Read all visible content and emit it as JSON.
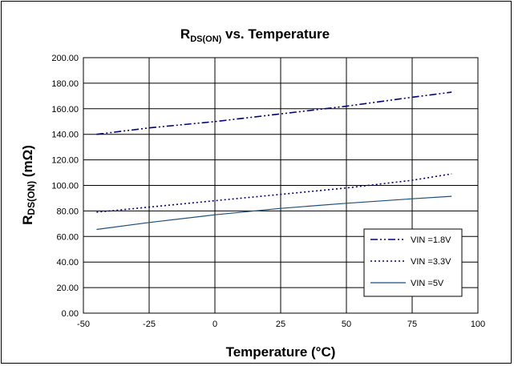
{
  "chart_data": {
    "type": "line",
    "title": {
      "main": "R",
      "subscript": "DS(ON)",
      "rest": " vs. Temperature"
    },
    "xlabel": "Temperature (°C)",
    "ylabel": {
      "main": "R",
      "subscript": "DS(ON)",
      "rest": " (mΩ)"
    },
    "xlim": [
      -50,
      100
    ],
    "ylim": [
      0,
      200
    ],
    "x_ticks": [
      -50,
      -25,
      0,
      25,
      50,
      75,
      100
    ],
    "x_tick_labels": [
      "-50",
      "-25",
      "0",
      "25",
      "50",
      "75",
      "100"
    ],
    "y_ticks": [
      0,
      20,
      40,
      60,
      80,
      100,
      120,
      140,
      160,
      180,
      200
    ],
    "y_tick_labels": [
      "0.00",
      "20.00",
      "40.00",
      "60.00",
      "80.00",
      "100.00",
      "120.00",
      "140.00",
      "160.00",
      "180.00",
      "200.00"
    ],
    "grid": true,
    "legend_position": "bottom-right",
    "series": [
      {
        "name": "VIN =1.8V",
        "color": "#000080",
        "dash": "dash-dot-dot",
        "x": [
          -45,
          -25,
          0,
          25,
          50,
          75,
          90
        ],
        "y": [
          140,
          145,
          150,
          156,
          162,
          169,
          173
        ]
      },
      {
        "name": "VIN =3.3V",
        "color": "#000080",
        "dash": "dotted",
        "x": [
          -45,
          -25,
          0,
          25,
          50,
          75,
          90
        ],
        "y": [
          79,
          83,
          88,
          93,
          98,
          104,
          109
        ]
      },
      {
        "name": "VIN =5V",
        "color": "#1f4e79",
        "dash": "solid",
        "x": [
          -45,
          -25,
          0,
          25,
          50,
          75,
          90
        ],
        "y": [
          65.5,
          71,
          77,
          82,
          86,
          89.5,
          91.5
        ]
      }
    ]
  }
}
